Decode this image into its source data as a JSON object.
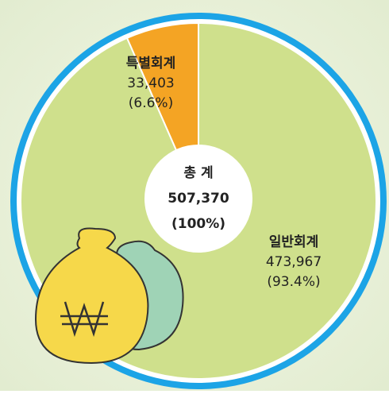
{
  "chart_data": {
    "type": "pie",
    "categories": [
      "특별회계",
      "일반회계"
    ],
    "values": [
      33403,
      473967
    ],
    "value_labels": [
      "33,403",
      "473,967"
    ],
    "percent_labels": [
      "(6.6%)",
      "(93.4%)"
    ],
    "colors": [
      "#f4a424",
      "#cfe08c"
    ],
    "total_title": "총 계",
    "total": {
      "value": 507370,
      "label": "507,370"
    },
    "total_percent_label": "(100%)"
  }
}
